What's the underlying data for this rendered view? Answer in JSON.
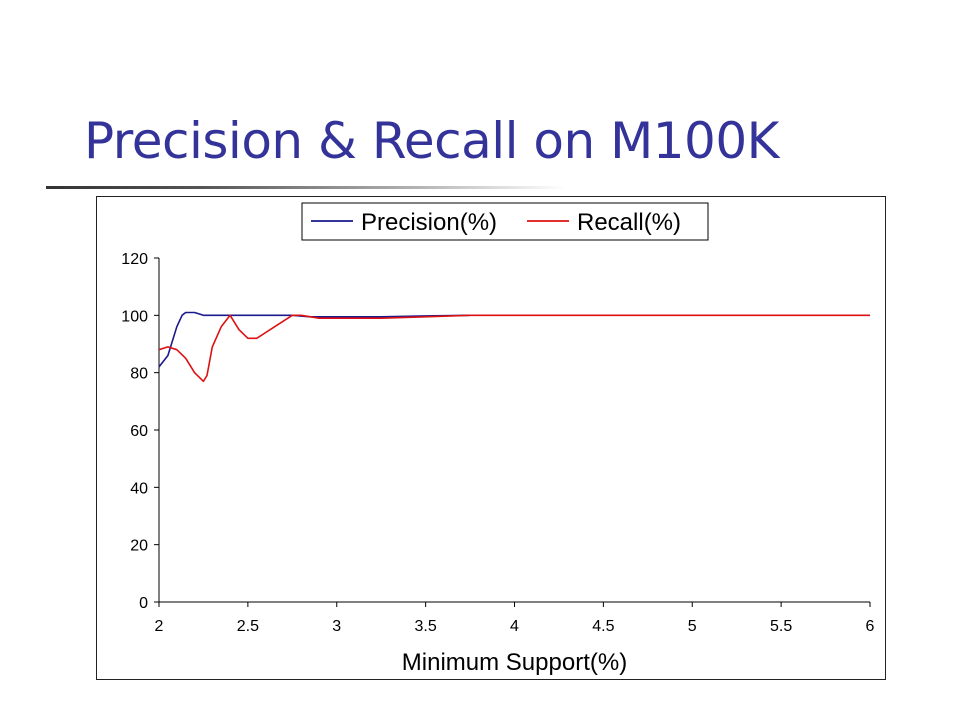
{
  "slide": {
    "title": "Precision & Recall on M100K"
  },
  "chart_data": {
    "type": "line",
    "title": "",
    "xlabel": "Minimum Support(%)",
    "ylabel": "",
    "xlim": [
      2,
      6
    ],
    "ylim": [
      0,
      120
    ],
    "xticks": [
      2,
      2.5,
      3,
      3.5,
      4,
      4.5,
      5,
      5.5,
      6
    ],
    "xtick_labels": [
      "2",
      "2.5",
      "3",
      "3.5",
      "4",
      "4.5",
      "5",
      "5.5",
      "6"
    ],
    "yticks": [
      0,
      20,
      40,
      60,
      80,
      100,
      120
    ],
    "ytick_labels": [
      "0",
      "20",
      "40",
      "60",
      "80",
      "100",
      "120"
    ],
    "grid": false,
    "legend_position": "top-center",
    "series": [
      {
        "name": "Precision(%)",
        "color": "#1a1a8c",
        "points": [
          [
            2.0,
            82
          ],
          [
            2.05,
            86
          ],
          [
            2.1,
            96
          ],
          [
            2.13,
            100
          ],
          [
            2.15,
            101
          ],
          [
            2.2,
            101
          ],
          [
            2.25,
            100
          ],
          [
            2.3,
            100
          ],
          [
            2.5,
            100
          ],
          [
            2.75,
            100
          ],
          [
            2.85,
            99.5
          ],
          [
            3.0,
            99.5
          ],
          [
            3.25,
            99.5
          ],
          [
            3.5,
            99.8
          ],
          [
            3.75,
            100
          ]
        ]
      },
      {
        "name": "Recall(%)",
        "color": "#dd1111",
        "points": [
          [
            2.0,
            88
          ],
          [
            2.05,
            89
          ],
          [
            2.1,
            88
          ],
          [
            2.15,
            85
          ],
          [
            2.2,
            80
          ],
          [
            2.25,
            77
          ],
          [
            2.27,
            79
          ],
          [
            2.3,
            89
          ],
          [
            2.35,
            96
          ],
          [
            2.4,
            100
          ],
          [
            2.45,
            95
          ],
          [
            2.5,
            92
          ],
          [
            2.55,
            92
          ],
          [
            2.6,
            94
          ],
          [
            2.65,
            96
          ],
          [
            2.7,
            98
          ],
          [
            2.75,
            100
          ],
          [
            2.8,
            100
          ],
          [
            2.9,
            99
          ],
          [
            3.0,
            99
          ],
          [
            3.25,
            99
          ],
          [
            3.5,
            99.5
          ],
          [
            3.75,
            100
          ],
          [
            4.0,
            100
          ],
          [
            4.5,
            100
          ],
          [
            5.0,
            100
          ],
          [
            5.5,
            100
          ],
          [
            6.0,
            100
          ]
        ]
      }
    ]
  }
}
